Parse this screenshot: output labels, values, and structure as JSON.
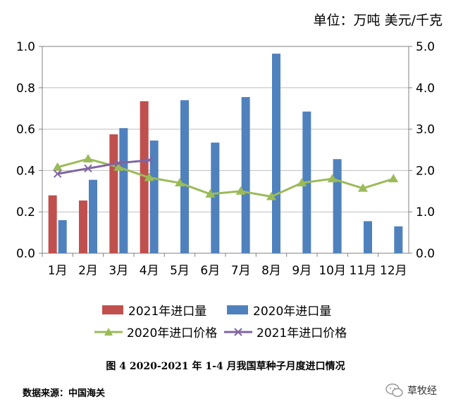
{
  "unit_label": "单位：万吨  美元/千克",
  "caption": "图 4 2020-2021 年 1-4 月我国草种子月度进口情况",
  "source": "数据来源：中国海关",
  "logo_text": "草牧经",
  "colors": {
    "bar_2021": "#c0504d",
    "bar_2020": "#4f81bd",
    "line_2020": "#9bbb59",
    "line_2021": "#8064a2",
    "grid": "#bfbfbf",
    "axis": "#808080"
  },
  "chart_data": {
    "type": "bar",
    "categories": [
      "1月",
      "2月",
      "3月",
      "4月",
      "5月",
      "6月",
      "7月",
      "8月",
      "9月",
      "10月",
      "11月",
      "12月"
    ],
    "y_left": {
      "ylim": [
        0,
        1.0
      ],
      "ticks": [
        "0.0",
        "0.2",
        "0.4",
        "0.6",
        "0.8",
        "1.0"
      ]
    },
    "y_right": {
      "ylim": [
        0,
        5.0
      ],
      "ticks": [
        "0.0",
        "1.0",
        "2.0",
        "3.0",
        "4.0",
        "5.0"
      ]
    },
    "grid": true,
    "legend_position": "bottom",
    "bar_series": [
      {
        "name": "2021年进口量",
        "values": [
          0.28,
          0.255,
          0.575,
          0.735,
          null,
          null,
          null,
          null,
          null,
          null,
          null,
          null
        ]
      },
      {
        "name": "2020年进口量",
        "values": [
          0.16,
          0.355,
          0.605,
          0.545,
          0.74,
          0.535,
          0.755,
          0.965,
          0.685,
          0.455,
          0.155,
          0.13
        ]
      }
    ],
    "line_series": [
      {
        "name": "2020年进口价格",
        "axis": "right",
        "marker": "triangle",
        "values": [
          2.08,
          2.28,
          2.08,
          1.83,
          1.7,
          1.43,
          1.5,
          1.37,
          1.7,
          1.8,
          1.57,
          1.8
        ]
      },
      {
        "name": "2021年进口价格",
        "axis": "right",
        "marker": "x",
        "values": [
          1.92,
          2.05,
          2.18,
          2.25,
          null,
          null,
          null,
          null,
          null,
          null,
          null,
          null
        ]
      }
    ]
  }
}
